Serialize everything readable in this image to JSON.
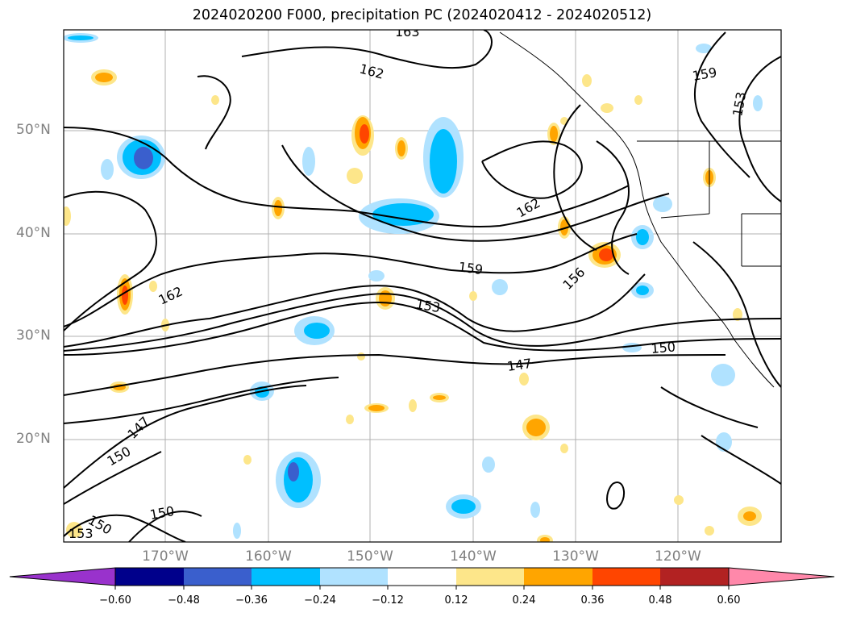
{
  "title": "2024020200 F000, precipitation PC (2024020412 - 2024020512)",
  "map": {
    "lat_labels": [
      "50°N",
      "40°N",
      "30°N",
      "20°N"
    ],
    "lon_labels": [
      "170°W",
      "160°W",
      "150°W",
      "140°W",
      "130°W",
      "120°W"
    ],
    "contour_labels": [
      "163",
      "162",
      "162",
      "162",
      "159",
      "159",
      "153",
      "156",
      "153",
      "150",
      "147",
      "147",
      "150",
      "150",
      "150",
      "153"
    ]
  },
  "colorbar": {
    "ticks": [
      "−0.60",
      "−0.48",
      "−0.36",
      "−0.24",
      "−0.12",
      "0.12",
      "0.24",
      "0.36",
      "0.48",
      "0.60"
    ],
    "colors": [
      "#9932cc",
      "#00008b",
      "#3a5fcd",
      "#00bfff",
      "#b0e2ff",
      "#ffffff",
      "#fde68a",
      "#ffa500",
      "#ff4500",
      "#b22222",
      "#ff88aa"
    ]
  }
}
